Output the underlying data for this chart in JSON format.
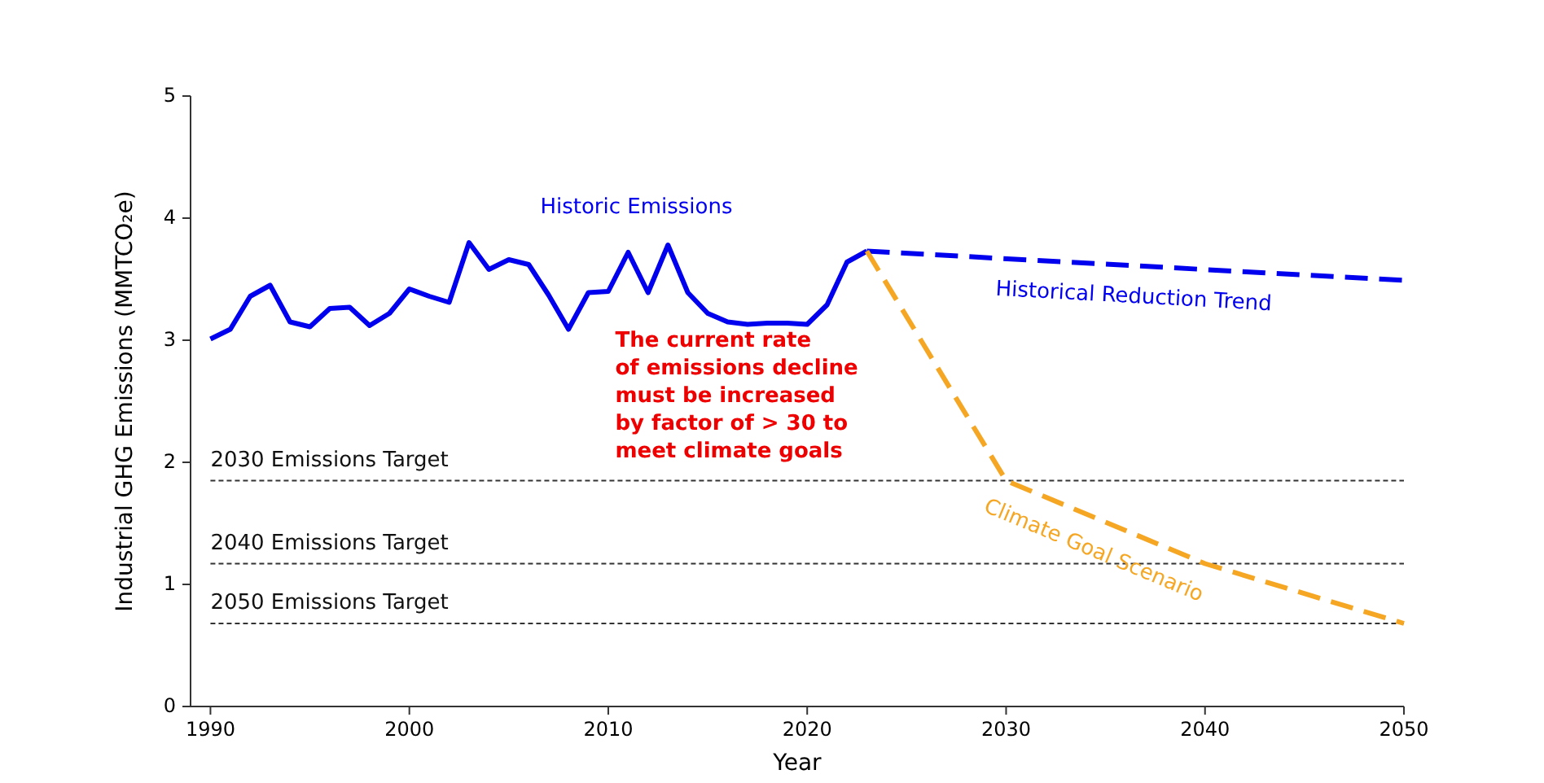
{
  "chart_data": {
    "type": "line",
    "xlabel": "Year",
    "ylabel": "Industrial GHG Emissions (MMTCO₂e)",
    "xlim": [
      1989,
      2050
    ],
    "xticks": [
      1990,
      2000,
      2010,
      2020,
      2030,
      2040,
      2050
    ],
    "ylim": [
      0,
      5
    ],
    "yticks": [
      0,
      1,
      2,
      3,
      4,
      5
    ],
    "grid": false,
    "series": [
      {
        "name": "Historic Emissions",
        "color": "#0000ee",
        "line_style": "solid",
        "x": [
          1990,
          1991,
          1992,
          1993,
          1994,
          1995,
          1996,
          1997,
          1998,
          1999,
          2000,
          2001,
          2002,
          2003,
          2004,
          2005,
          2006,
          2007,
          2008,
          2009,
          2010,
          2011,
          2012,
          2013,
          2014,
          2015,
          2016,
          2017,
          2018,
          2019,
          2020,
          2021,
          2022,
          2023
        ],
        "values": [
          3.01,
          3.09,
          3.36,
          3.45,
          3.15,
          3.11,
          3.26,
          3.27,
          3.12,
          3.22,
          3.42,
          3.36,
          3.31,
          3.8,
          3.58,
          3.66,
          3.62,
          3.37,
          3.09,
          3.39,
          3.4,
          3.72,
          3.39,
          3.78,
          3.39,
          3.22,
          3.15,
          3.13,
          3.14,
          3.14,
          3.13,
          3.29,
          3.64,
          3.73
        ]
      },
      {
        "name": "Historical Reduction Trend",
        "color": "#0000ee",
        "line_style": "dashed",
        "x": [
          2023,
          2050
        ],
        "values": [
          3.73,
          3.49
        ]
      },
      {
        "name": "Climate Goal Scenario",
        "color": "#f5a623",
        "line_style": "dashed",
        "x": [
          2023,
          2030,
          2040,
          2050
        ],
        "values": [
          3.73,
          1.85,
          1.17,
          0.68
        ]
      }
    ],
    "ref_lines": [
      {
        "axis": "y",
        "value": 1.85,
        "label": "2030 Emissions Target",
        "color": "#333333",
        "line_style": "dashed"
      },
      {
        "axis": "y",
        "value": 1.17,
        "label": "2040 Emissions Target",
        "color": "#333333",
        "line_style": "dashed"
      },
      {
        "axis": "y",
        "value": 0.68,
        "label": "2050 Emissions Target",
        "color": "#333333",
        "line_style": "dashed"
      }
    ],
    "annotations": [
      "The current rate\nof emissions decline\nmust be increased\nby factor of > 30 to\nmeet climate goals"
    ]
  }
}
